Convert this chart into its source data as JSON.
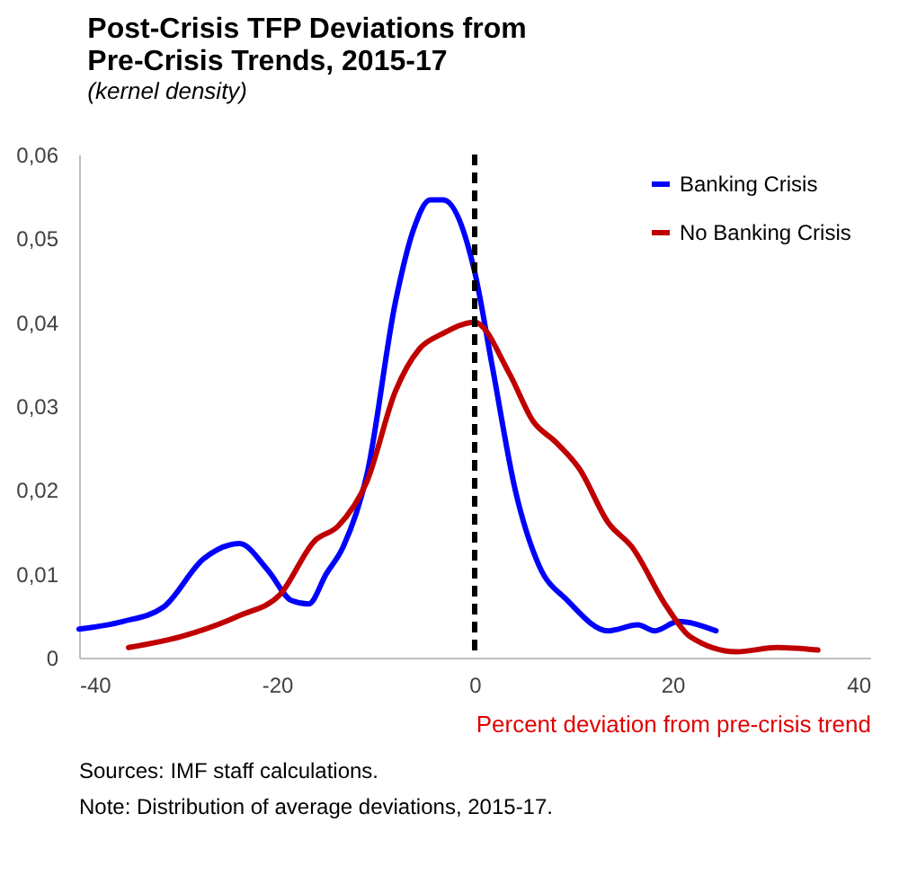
{
  "chart_data": {
    "type": "line",
    "title": "Post-Crisis TFP Deviations from Pre-Crisis Trends, 2015-17",
    "subtitle": "(kernel density)",
    "xlabel": "Percent deviation from pre-crisis trend",
    "xlim": [
      -40,
      40
    ],
    "xticks": [
      -40,
      -20,
      0,
      20,
      40
    ],
    "ylim": [
      0,
      0.06
    ],
    "yticks": [
      0,
      {
        "value": 0.01,
        "label": "0,01"
      },
      {
        "value": 0.02,
        "label": "0,02"
      },
      {
        "value": 0.03,
        "label": "0,03"
      },
      {
        "value": 0.04,
        "label": "0,04"
      },
      {
        "value": 0.05,
        "label": "0,05"
      },
      {
        "value": 0.06,
        "label": "0,06"
      }
    ],
    "grid": false,
    "legend": "top right",
    "marker": "none",
    "line_style": "solid",
    "series": [
      {
        "name": "Banking Crisis",
        "color": "#0000ff",
        "x": [
          -40,
          -35.6,
          -31.5,
          -27.4,
          -23.8,
          -20.9,
          -18.5,
          -16.8,
          -15,
          -13.3,
          -10.9,
          -8,
          -6.2,
          -4.5,
          -3.2,
          0,
          1.8,
          4.1,
          6.5,
          9.4,
          13.5,
          16.5,
          18.2,
          20.6,
          24.4
        ],
        "values": [
          0.0034,
          0.0043,
          0.006,
          0.0118,
          0.0136,
          0.0104,
          0.0068,
          0.0064,
          0.01,
          0.0132,
          0.0218,
          0.0425,
          0.051,
          0.0546,
          0.0546,
          0.046,
          0.0346,
          0.02,
          0.011,
          0.0068,
          0.0032,
          0.0039,
          0.0032,
          0.0043,
          0.0032
        ]
      },
      {
        "name": "No Banking Crisis",
        "color": "#c00000",
        "x": [
          -35,
          -29.7,
          -23.8,
          -19.7,
          -16.2,
          -13.8,
          -10.9,
          -8,
          -5.6,
          -3.3,
          0,
          3.5,
          5.9,
          8.2,
          10.6,
          13.5,
          15.9,
          19.4,
          21.8,
          26.5,
          30.6,
          34.7
        ],
        "values": [
          0.0012,
          0.0025,
          0.005,
          0.0075,
          0.0139,
          0.0157,
          0.021,
          0.0318,
          0.0368,
          0.0386,
          0.04,
          0.0339,
          0.0282,
          0.0257,
          0.0225,
          0.0161,
          0.0132,
          0.0061,
          0.0025,
          0.0007,
          0.0012,
          0.0009
        ]
      }
    ],
    "ref_lines": [
      {
        "axis": "x",
        "value": 0,
        "color": "#000000",
        "line_style": "dashed"
      }
    ],
    "annotations": [
      "Sources: IMF staff calculations.",
      "Note: Distribution of average deviations, 2015-17."
    ]
  }
}
